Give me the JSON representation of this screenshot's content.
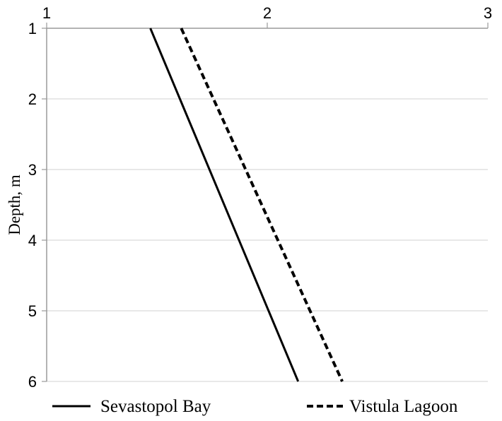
{
  "chart_data": {
    "type": "line",
    "title": "",
    "xlabel": "",
    "ylabel": "Depth, m",
    "x_ticks": [
      "1",
      "2",
      "3"
    ],
    "y_ticks": [
      "1",
      "2",
      "3",
      "4",
      "5",
      "6"
    ],
    "xlim": [
      1,
      3
    ],
    "ylim": [
      1,
      6
    ],
    "y_inverted": true,
    "x_axis_position": "top",
    "grid": "horizontal",
    "legend_position": "bottom",
    "series": [
      {
        "name": "Sevastopol Bay",
        "style": "solid",
        "color": "#000000",
        "points": [
          {
            "x": 1.47,
            "y": 1
          },
          {
            "x": 2.14,
            "y": 6
          }
        ]
      },
      {
        "name": "Vistula Lagoon",
        "style": "dashed",
        "color": "#000000",
        "points": [
          {
            "x": 1.61,
            "y": 1
          },
          {
            "x": 2.34,
            "y": 6
          }
        ]
      }
    ]
  },
  "colors": {
    "grid": "#d9d9d9",
    "axis": "#9a9a9a",
    "line": "#000000"
  }
}
